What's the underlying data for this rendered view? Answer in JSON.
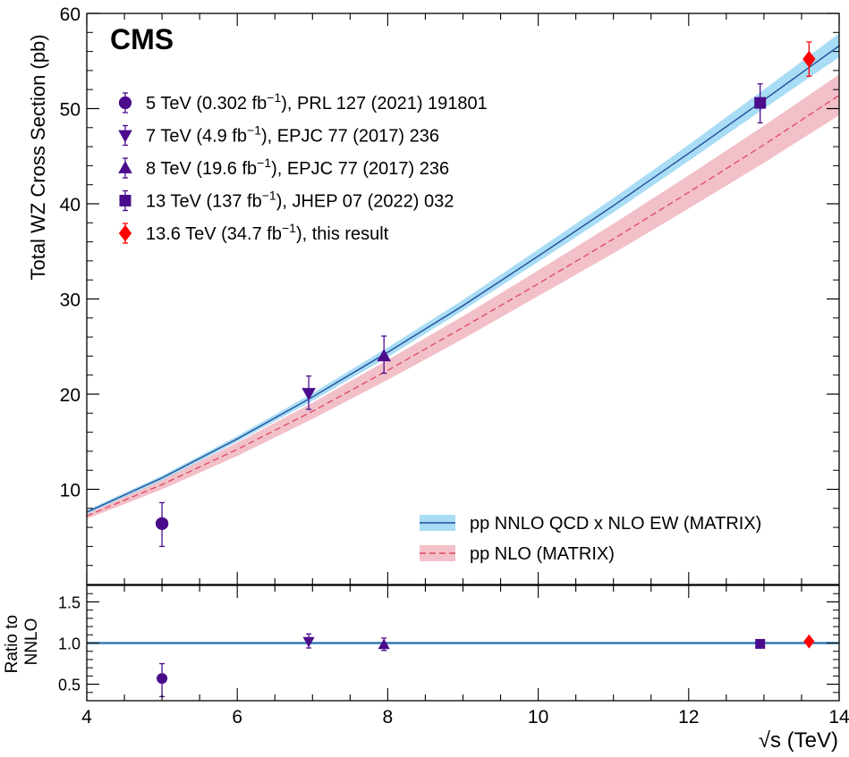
{
  "chart_data": [
    {
      "type": "scatter",
      "panel": "main",
      "experiment_label": "CMS",
      "xlabel": "√s  (TeV)",
      "ylabel": "Total WZ Cross Section (pb)",
      "xlim": [
        4,
        14
      ],
      "ylim": [
        0,
        60
      ],
      "xticks": [
        "4",
        "6",
        "8",
        "10",
        "12",
        "14"
      ],
      "yticks": [
        "10",
        "20",
        "30",
        "40",
        "50",
        "60"
      ],
      "grid": false,
      "legend_position": "top-left (data) / bottom-right (theory)",
      "series": [
        {
          "name": "5 TeV (0.302 fb⁻¹), PRL 127 (2021) 191801",
          "marker": "circle",
          "color": "#4b0c8c",
          "x": 5.0,
          "y": 6.4,
          "err_lo": 2.4,
          "err_hi": 2.2
        },
        {
          "name": "7 TeV (4.9 fb⁻¹), EPJC  77 (2017) 236",
          "marker": "triangle-down",
          "color": "#4b0c8c",
          "x": 6.95,
          "y": 20.1,
          "err_lo": 1.7,
          "err_hi": 1.8
        },
        {
          "name": "8 TeV (19.6 fb⁻¹), EPJC  77 (2017) 236",
          "marker": "triangle-up",
          "color": "#4b0c8c",
          "x": 7.95,
          "y": 24.0,
          "err_lo": 1.8,
          "err_hi": 2.1
        },
        {
          "name": "13 TeV (137 fb⁻¹), JHEP 07 (2022) 032",
          "marker": "square",
          "color": "#4b0c8c",
          "x": 12.95,
          "y": 50.6,
          "err_lo": 2.1,
          "err_hi": 2.0
        },
        {
          "name": "13.6 TeV (34.7 fb⁻¹), this result",
          "marker": "diamond",
          "color": "#ff0000",
          "x": 13.6,
          "y": 55.2,
          "err_lo": 1.8,
          "err_hi": 1.8
        }
      ],
      "theory": [
        {
          "name": "pp NNLO QCD x NLO EW (MATRIX)",
          "line_color": "#1f4e99",
          "band_color": "#a9dcf5",
          "x": [
            4,
            5,
            6,
            7,
            8,
            9,
            10,
            11,
            12,
            13,
            14
          ],
          "y": [
            7.6,
            11.2,
            15.3,
            19.7,
            24.4,
            29.3,
            34.5,
            39.8,
            45.3,
            50.9,
            56.6
          ],
          "band_lo": [
            7.4,
            10.95,
            15.0,
            19.3,
            23.9,
            28.8,
            33.9,
            39.1,
            44.5,
            50.0,
            55.4
          ],
          "band_hi": [
            7.8,
            11.45,
            15.6,
            20.1,
            24.9,
            29.9,
            35.2,
            40.6,
            46.2,
            52.0,
            57.9
          ]
        },
        {
          "name": "pp NLO (MATRIX)",
          "line_color": "#e0475e",
          "band_color": "#f2c0c8",
          "x": [
            4,
            5,
            6,
            7,
            8,
            9,
            10,
            11,
            12,
            13,
            14
          ],
          "y": [
            7.2,
            10.5,
            14.2,
            18.2,
            22.5,
            27.0,
            31.6,
            36.3,
            41.2,
            46.2,
            51.4
          ],
          "band_lo": [
            6.9,
            10.0,
            13.5,
            17.4,
            21.5,
            25.8,
            30.3,
            34.8,
            39.5,
            44.3,
            49.3
          ],
          "band_hi": [
            7.6,
            11.0,
            14.9,
            19.1,
            23.6,
            28.2,
            33.0,
            37.9,
            43.0,
            48.2,
            53.6
          ]
        }
      ]
    },
    {
      "type": "scatter",
      "panel": "ratio",
      "ylabel_lines": [
        "Ratio to",
        "NNLO"
      ],
      "xlim": [
        4,
        14
      ],
      "ylim": [
        0.3,
        1.7
      ],
      "yticks": [
        "0.5",
        "1.0",
        "1.5"
      ],
      "reference_line": 1.0,
      "reference_color": "#1f4e99",
      "band_color": "#a9dcf5",
      "points": [
        {
          "x": 5.0,
          "y": 0.57,
          "err_lo": 0.22,
          "err_hi": 0.18,
          "marker": "circle",
          "color": "#4b0c8c"
        },
        {
          "x": 6.95,
          "y": 1.02,
          "err_lo": 0.08,
          "err_hi": 0.09,
          "marker": "triangle-down",
          "color": "#4b0c8c"
        },
        {
          "x": 7.95,
          "y": 0.98,
          "err_lo": 0.07,
          "err_hi": 0.08,
          "marker": "triangle-up",
          "color": "#4b0c8c"
        },
        {
          "x": 12.95,
          "y": 0.99,
          "err_lo": 0.04,
          "err_hi": 0.04,
          "marker": "square",
          "color": "#4b0c8c"
        },
        {
          "x": 13.6,
          "y": 1.02,
          "err_lo": 0.03,
          "err_hi": 0.03,
          "marker": "diamond",
          "color": "#ff0000"
        }
      ]
    }
  ]
}
